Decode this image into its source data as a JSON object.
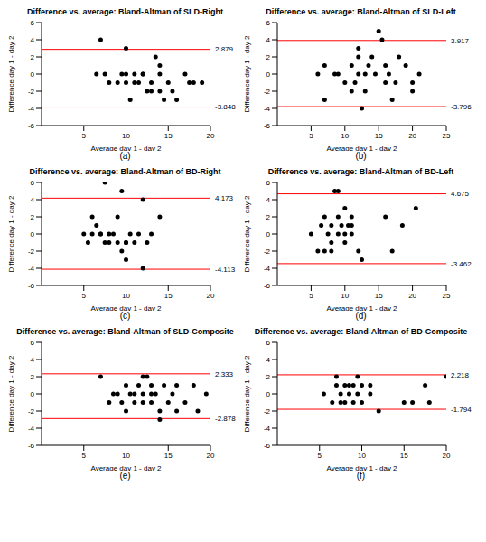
{
  "chart_data": [
    {
      "type": "scatter",
      "title": "Difference vs. average: Bland-Altman of SLD-Right",
      "panel": "(a)",
      "x_label": "Average day 1 - day 2",
      "y_label": "Difference day 1 - day 2",
      "color": "#000000",
      "marker": "circle",
      "x": [
        7,
        6.5,
        7.5,
        8,
        9,
        9.5,
        10,
        10,
        10,
        10.5,
        11,
        11.5,
        12,
        12.5,
        13,
        13,
        13.5,
        14,
        14,
        14.5,
        14,
        15,
        15.5,
        16,
        17,
        17.5,
        18,
        19,
        11,
        12
      ],
      "values": [
        4,
        0,
        0,
        -1,
        -1,
        0,
        3,
        0,
        -1,
        -3,
        -1,
        -1,
        0,
        -2,
        -1,
        -2,
        2,
        1,
        -2,
        -3,
        0,
        -1,
        -2,
        -3,
        0,
        -1,
        -1,
        -1,
        0,
        0
      ],
      "limits": [
        2.879,
        -3.848
      ],
      "xlim": [
        0,
        20
      ],
      "xticks": [
        5,
        10,
        15,
        20
      ],
      "ylim": [
        -6,
        6
      ],
      "yticks": [
        -6,
        -4,
        -2,
        0,
        2,
        4,
        6
      ]
    },
    {
      "type": "scatter",
      "title": "Difference vs. average: Bland-Altman of SLD-Left",
      "panel": "(b)",
      "x_label": "Average day 1 - day 2",
      "y_label": "Difference day 1 - day 2",
      "color": "#000000",
      "marker": "circle",
      "x": [
        6,
        7,
        7,
        8.5,
        9,
        10,
        11,
        11,
        11.5,
        12,
        12,
        12.5,
        13,
        13,
        13.5,
        14,
        14.5,
        15,
        15.5,
        16,
        16,
        16.5,
        17,
        17.5,
        18,
        19,
        20,
        21,
        20,
        12
      ],
      "values": [
        0,
        -3,
        1,
        0,
        0,
        -1,
        1,
        -2,
        -1,
        2,
        3,
        -4,
        0,
        -2,
        1,
        2,
        0,
        5,
        4,
        1,
        -1,
        0,
        -3,
        -1,
        2,
        1,
        -2,
        0,
        -1,
        0
      ],
      "limits": [
        3.917,
        -3.796
      ],
      "xlim": [
        0,
        25
      ],
      "xticks": [
        5,
        10,
        15,
        20,
        25
      ],
      "ylim": [
        -6,
        6
      ],
      "yticks": [
        -6,
        -4,
        -2,
        0,
        2,
        4,
        6
      ]
    },
    {
      "type": "scatter",
      "title": "Difference vs. average: Bland-Altman of BD-Right",
      "panel": "(c)",
      "x_label": "Average day 1 - day 2",
      "y_label": "Difference day 1 - day 2",
      "color": "#000000",
      "marker": "circle",
      "x": [
        5,
        5.5,
        6,
        6.5,
        7,
        7.5,
        7.5,
        8,
        8,
        8.5,
        9,
        9,
        9.5,
        9.5,
        10,
        10,
        10.5,
        10,
        11,
        11.5,
        12,
        12,
        12.5,
        13,
        14,
        7,
        6
      ],
      "values": [
        0,
        -1,
        2,
        1,
        0,
        6,
        -1,
        0,
        -1,
        0,
        2,
        -1,
        5,
        -2,
        -3,
        -1,
        0,
        -1,
        -1,
        0,
        4,
        -4,
        -1,
        0,
        2,
        0,
        0
      ],
      "limits": [
        4.173,
        -4.113
      ],
      "xlim": [
        0,
        20
      ],
      "xticks": [
        5,
        10,
        15,
        20
      ],
      "ylim": [
        -6,
        6
      ],
      "yticks": [
        -6,
        -4,
        -2,
        0,
        2,
        4,
        6
      ]
    },
    {
      "type": "scatter",
      "title": "Difference vs. average: Bland-Altman of BD-Left",
      "panel": "(d)",
      "x_label": "Average day 1 - day 2",
      "y_label": "Difference day 1 - day 2",
      "color": "#000000",
      "marker": "circle",
      "x": [
        5,
        6,
        6.5,
        7,
        7,
        7.5,
        8,
        8,
        8.5,
        9,
        9,
        9,
        9.5,
        10,
        10,
        10.5,
        11,
        11,
        12,
        12.5,
        16,
        17,
        18.5,
        20.5,
        8,
        10,
        11
      ],
      "values": [
        0,
        -2,
        1,
        -2,
        2,
        0,
        1,
        -1,
        5,
        5,
        0,
        2,
        1,
        -1,
        3,
        1,
        2,
        0,
        -2,
        -3,
        2,
        -2,
        1,
        3,
        -2,
        0,
        1
      ],
      "limits": [
        4.675,
        -3.462
      ],
      "xlim": [
        0,
        25
      ],
      "xticks": [
        5,
        10,
        15,
        20,
        25
      ],
      "ylim": [
        -6,
        6
      ],
      "yticks": [
        -6,
        -4,
        -2,
        0,
        2,
        4,
        6
      ]
    },
    {
      "type": "scatter",
      "title": "Difference vs. average: Bland-Altman of SLD-Composite",
      "panel": "(e)",
      "x_label": "Average day 1 - day 2",
      "y_label": "Difference day 1 - day 2",
      "color": "#000000",
      "marker": "circle",
      "x": [
        7,
        8,
        8.5,
        9,
        9.5,
        10,
        10,
        10.5,
        11,
        11.5,
        12,
        12,
        12,
        12.5,
        13,
        13,
        13.5,
        14,
        14,
        14.5,
        15,
        15.5,
        16,
        16,
        17,
        18,
        18.5,
        19.5,
        11,
        13
      ],
      "values": [
        2,
        -1,
        0,
        0,
        -1,
        1,
        -2,
        0,
        -1,
        1,
        2,
        0,
        -1,
        2,
        1,
        -1,
        0,
        -3,
        -2,
        1,
        -1,
        0,
        1,
        -2,
        -1,
        1,
        -2,
        0,
        0,
        0
      ],
      "limits": [
        2.333,
        -2.878
      ],
      "xlim": [
        0,
        20
      ],
      "xticks": [
        5,
        10,
        15,
        20
      ],
      "ylim": [
        -6,
        6
      ],
      "yticks": [
        -6,
        -4,
        -2,
        0,
        2,
        4,
        6
      ]
    },
    {
      "type": "scatter",
      "title": "Difference vs. average: Bland-Altman of BD-Composite",
      "panel": "(f)",
      "x_label": "Average day 1 - day 2",
      "y_label": "Difference day 1 - day 2",
      "color": "#000000",
      "marker": "circle",
      "x": [
        5.5,
        6.5,
        7,
        7,
        7.5,
        7.5,
        8,
        8,
        8.5,
        9,
        9,
        9.5,
        9.5,
        10,
        10,
        11,
        11,
        12,
        15,
        16,
        17.5,
        18,
        20,
        8.5
      ],
      "values": [
        0,
        -1,
        1,
        2,
        -1,
        0,
        1,
        -1,
        0,
        1,
        -1,
        2,
        0,
        1,
        -1,
        1,
        0,
        -2,
        -1,
        -1,
        1,
        -1,
        2,
        1
      ],
      "limits": [
        2.218,
        -1.794
      ],
      "xlim": [
        0,
        20
      ],
      "xticks": [
        5,
        10,
        15,
        20
      ],
      "ylim": [
        -6,
        6
      ],
      "yticks": [
        -6,
        -4,
        -2,
        0,
        2,
        4,
        6
      ]
    }
  ]
}
